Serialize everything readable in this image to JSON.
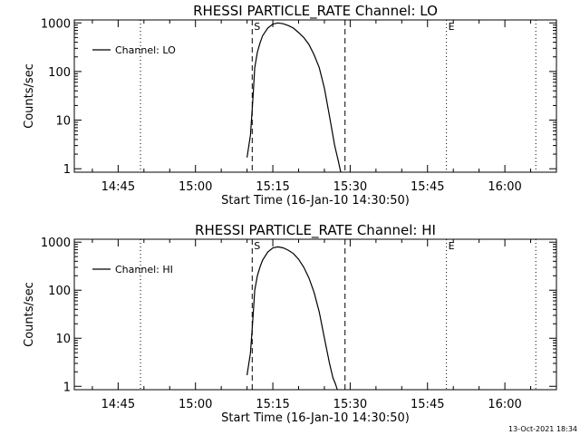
{
  "footer_text": "13-Oct-2021 18:34",
  "chart_data": [
    {
      "type": "line",
      "title": "RHESSI PARTICLE_RATE Channel: LO",
      "xlabel": "Start Time (16-Jan-10 14:30:50)",
      "ylabel": "Counts/sec",
      "yscale": "log",
      "xlim": [
        "14:36:30",
        "16:10:00"
      ],
      "ylim": [
        0.85,
        1150
      ],
      "xticks": [
        "14:45",
        "15:00",
        "15:15",
        "15:30",
        "15:45",
        "16:00"
      ],
      "yticks": [
        "1",
        "10",
        "100",
        "1000"
      ],
      "legend": {
        "label": "Channel: LO",
        "position": "top-left"
      },
      "markers": [
        {
          "label": "S",
          "x": "15:11:00",
          "style": "dashed"
        },
        {
          "label": "",
          "x": "15:29:00",
          "style": "dashed"
        },
        {
          "label": "",
          "x": "14:49:20",
          "style": "dotted"
        },
        {
          "label": "E",
          "x": "15:48:40",
          "style": "dotted"
        },
        {
          "label": "",
          "x": "16:06:00",
          "style": "dotted"
        }
      ],
      "series": [
        {
          "name": "Channel: LO",
          "x": [
            "15:10:00",
            "15:10:40",
            "15:11:10",
            "15:11:30",
            "15:12:00",
            "15:12:30",
            "15:13:00",
            "15:14:00",
            "15:15:00",
            "15:16:00",
            "15:17:00",
            "15:18:00",
            "15:19:00",
            "15:20:00",
            "15:21:00",
            "15:22:00",
            "15:23:00",
            "15:24:00",
            "15:25:00",
            "15:26:00",
            "15:27:00",
            "15:27:40",
            "15:28:10"
          ],
          "y": [
            1.7,
            5,
            30,
            120,
            250,
            380,
            540,
            780,
            950,
            1000,
            960,
            880,
            780,
            630,
            500,
            360,
            220,
            120,
            45,
            12,
            3,
            1.5,
            0.85
          ]
        }
      ]
    },
    {
      "type": "line",
      "title": "RHESSI PARTICLE_RATE Channel: HI",
      "xlabel": "Start Time (16-Jan-10 14:30:50)",
      "ylabel": "Counts/sec",
      "yscale": "log",
      "xlim": [
        "14:36:30",
        "16:10:00"
      ],
      "ylim": [
        0.85,
        1150
      ],
      "xticks": [
        "14:45",
        "15:00",
        "15:15",
        "15:30",
        "15:45",
        "16:00"
      ],
      "yticks": [
        "1",
        "10",
        "100",
        "1000"
      ],
      "legend": {
        "label": "Channel: HI",
        "position": "top-left"
      },
      "markers": [
        {
          "label": "S",
          "x": "15:11:00",
          "style": "dashed"
        },
        {
          "label": "",
          "x": "15:29:00",
          "style": "dashed"
        },
        {
          "label": "",
          "x": "14:49:20",
          "style": "dotted"
        },
        {
          "label": "E",
          "x": "15:48:40",
          "style": "dotted"
        },
        {
          "label": "",
          "x": "16:06:00",
          "style": "dotted"
        }
      ],
      "series": [
        {
          "name": "Channel: HI",
          "x": [
            "15:10:00",
            "15:10:40",
            "15:11:10",
            "15:11:30",
            "15:12:00",
            "15:12:30",
            "15:13:00",
            "15:14:00",
            "15:15:00",
            "15:16:00",
            "15:17:00",
            "15:18:00",
            "15:19:00",
            "15:20:00",
            "15:21:00",
            "15:22:00",
            "15:23:00",
            "15:24:00",
            "15:25:00",
            "15:26:00",
            "15:26:40",
            "15:27:10",
            "15:27:30"
          ],
          "y": [
            1.7,
            5,
            28,
            100,
            200,
            300,
            420,
            620,
            760,
            800,
            760,
            680,
            580,
            440,
            300,
            180,
            90,
            35,
            10,
            3,
            1.5,
            1.1,
            0.85
          ]
        }
      ]
    }
  ]
}
